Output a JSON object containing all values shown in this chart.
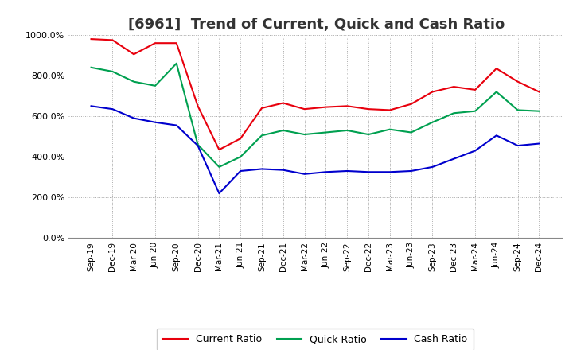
{
  "title": "[6961]  Trend of Current, Quick and Cash Ratio",
  "x_labels": [
    "Sep-19",
    "Dec-19",
    "Mar-20",
    "Jun-20",
    "Sep-20",
    "Dec-20",
    "Mar-21",
    "Jun-21",
    "Sep-21",
    "Dec-21",
    "Mar-22",
    "Jun-22",
    "Sep-22",
    "Dec-22",
    "Mar-23",
    "Jun-23",
    "Sep-23",
    "Dec-23",
    "Mar-24",
    "Jun-24",
    "Sep-24",
    "Dec-24"
  ],
  "current_ratio": [
    980,
    975,
    905,
    960,
    960,
    650,
    435,
    490,
    640,
    665,
    635,
    645,
    650,
    635,
    630,
    660,
    720,
    745,
    730,
    835,
    770,
    720
  ],
  "quick_ratio": [
    840,
    820,
    770,
    750,
    860,
    460,
    350,
    400,
    505,
    530,
    510,
    520,
    530,
    510,
    535,
    520,
    570,
    615,
    625,
    720,
    630,
    625
  ],
  "cash_ratio": [
    650,
    635,
    590,
    570,
    555,
    455,
    220,
    330,
    340,
    335,
    315,
    325,
    330,
    325,
    325,
    330,
    350,
    390,
    430,
    505,
    455,
    465
  ],
  "current_color": "#e8000d",
  "quick_color": "#00a050",
  "cash_color": "#0000cd",
  "ylim": [
    0,
    1000
  ],
  "yticks": [
    0,
    200,
    400,
    600,
    800,
    1000
  ],
  "background_color": "#ffffff",
  "grid_color": "#aaaaaa",
  "title_fontsize": 13,
  "legend_labels": [
    "Current Ratio",
    "Quick Ratio",
    "Cash Ratio"
  ]
}
